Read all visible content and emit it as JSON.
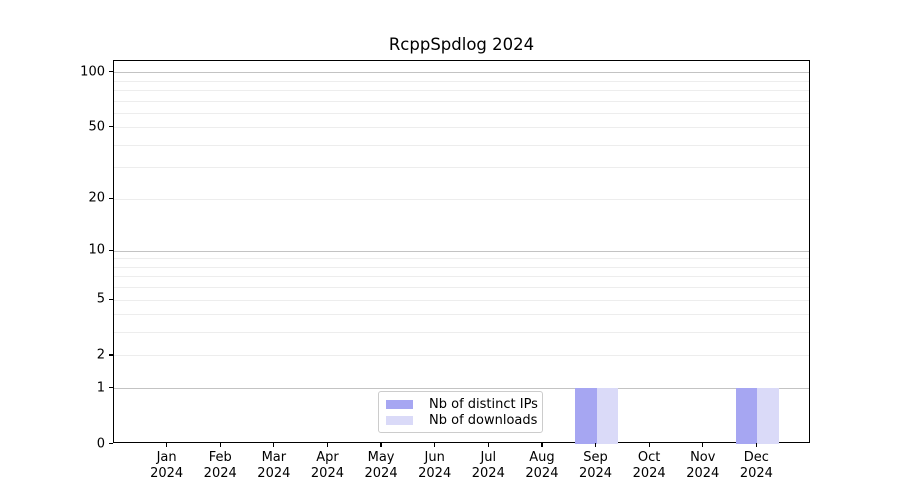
{
  "chart_data": {
    "type": "bar",
    "title": "RcppSpdlog 2024",
    "x_labels": [
      {
        "month": "Jan",
        "year": "2024"
      },
      {
        "month": "Feb",
        "year": "2024"
      },
      {
        "month": "Mar",
        "year": "2024"
      },
      {
        "month": "Apr",
        "year": "2024"
      },
      {
        "month": "May",
        "year": "2024"
      },
      {
        "month": "Jun",
        "year": "2024"
      },
      {
        "month": "Jul",
        "year": "2024"
      },
      {
        "month": "Aug",
        "year": "2024"
      },
      {
        "month": "Sep",
        "year": "2024"
      },
      {
        "month": "Oct",
        "year": "2024"
      },
      {
        "month": "Nov",
        "year": "2024"
      },
      {
        "month": "Dec",
        "year": "2024"
      }
    ],
    "series": [
      {
        "name": "Nb of distinct IPs",
        "color": "#a6a6f2",
        "values": [
          0,
          0,
          0,
          0,
          0,
          0,
          0,
          0,
          1,
          0,
          0,
          1
        ]
      },
      {
        "name": "Nb of downloads",
        "color": "#dadaf8",
        "values": [
          0,
          0,
          0,
          0,
          0,
          0,
          0,
          0,
          1,
          0,
          0,
          1
        ]
      }
    ],
    "y_axis": {
      "scale": "log1p",
      "min": 0,
      "max": 115,
      "ticks": [
        0,
        1,
        2,
        5,
        10,
        20,
        50,
        100
      ],
      "major_gridlines": [
        1,
        10,
        100
      ],
      "minor_gridlines": [
        3,
        4,
        6,
        7,
        8,
        9,
        30,
        40,
        60,
        70,
        80,
        90
      ]
    },
    "legend": {
      "position": "bottom-center",
      "entries": [
        "Nb of distinct IPs",
        "Nb of downloads"
      ]
    },
    "grid": "on",
    "colors": {
      "major_grid": "#c3c3c3",
      "minor_grid": "#ededed",
      "spine": "#000000"
    }
  }
}
